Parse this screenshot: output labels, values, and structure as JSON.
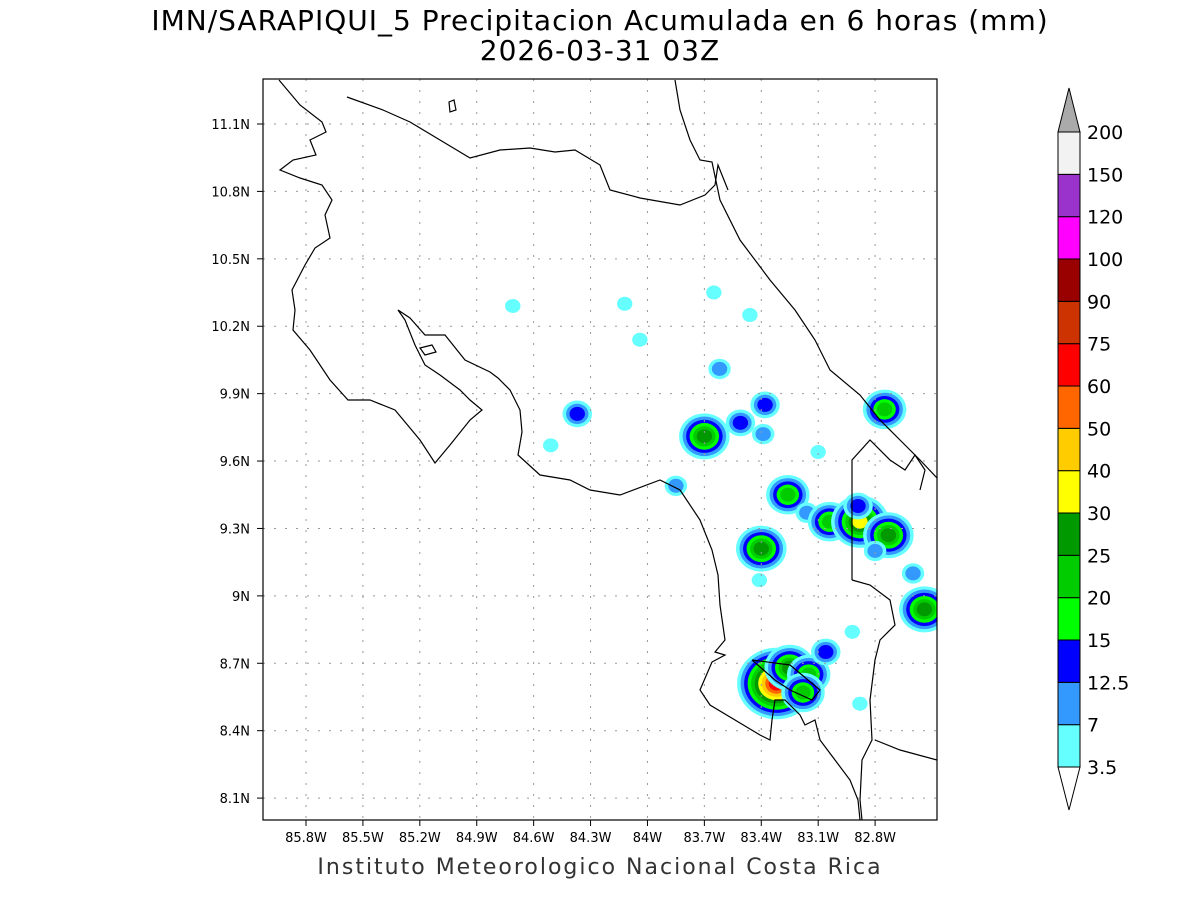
{
  "title": "IMN/SARAPIQUI_5 Precipitacion Acumulada en 6 horas (mm)",
  "subtitle": "2026-03-31 03Z",
  "footer": "Instituto Meteorologico Nacional Costa Rica",
  "chart_data": {
    "type": "heatmap",
    "units": "mm",
    "lon_range": [
      -86.0,
      -82.45
    ],
    "lat_range": [
      8.0,
      11.3
    ],
    "x_ticks": [
      "85.8W",
      "85.5W",
      "85.2W",
      "84.9W",
      "84.6W",
      "84.3W",
      "84W",
      "83.7W",
      "83.4W",
      "83.1W",
      "82.8W"
    ],
    "x_tick_values": [
      -85.8,
      -85.5,
      -85.2,
      -84.9,
      -84.6,
      -84.3,
      -84.0,
      -83.7,
      -83.4,
      -83.1,
      -82.8
    ],
    "y_ticks": [
      "11.1N",
      "10.8N",
      "10.5N",
      "10.2N",
      "9.9N",
      "9.6N",
      "9.3N",
      "9N",
      "8.7N",
      "8.4N",
      "8.1N"
    ],
    "y_tick_values": [
      11.1,
      10.8,
      10.5,
      10.2,
      9.9,
      9.6,
      9.3,
      9.0,
      8.7,
      8.4,
      8.1
    ],
    "grid": true,
    "colorbar": {
      "labels": [
        "3.5",
        "7",
        "12.5",
        "15",
        "20",
        "25",
        "30",
        "40",
        "50",
        "60",
        "75",
        "90",
        "100",
        "120",
        "150",
        "200"
      ],
      "colors": [
        "#66ffff",
        "#3399ff",
        "#0000ff",
        "#00ff00",
        "#00cc00",
        "#009900",
        "#ffff00",
        "#ffcc00",
        "#ff6600",
        "#ff0000",
        "#cc3300",
        "#990000",
        "#ff00ff",
        "#9933cc",
        "#f2f2f2"
      ],
      "over_color": "#aaaaaa",
      "under_color": "#ffffff",
      "placement": "right"
    },
    "cells": [
      {
        "lon": -83.7,
        "lat": 9.71,
        "level": 5
      },
      {
        "lon": -83.51,
        "lat": 9.77,
        "level": 2
      },
      {
        "lon": -83.38,
        "lat": 9.85,
        "level": 2
      },
      {
        "lon": -84.37,
        "lat": 9.81,
        "level": 2
      },
      {
        "lon": -84.51,
        "lat": 9.67,
        "level": 0
      },
      {
        "lon": -84.04,
        "lat": 10.14,
        "level": 0
      },
      {
        "lon": -84.12,
        "lat": 10.3,
        "level": 0
      },
      {
        "lon": -84.71,
        "lat": 10.29,
        "level": 0
      },
      {
        "lon": -83.62,
        "lat": 10.01,
        "level": 1
      },
      {
        "lon": -83.46,
        "lat": 10.25,
        "level": 0
      },
      {
        "lon": -83.65,
        "lat": 10.35,
        "level": 0
      },
      {
        "lon": -82.75,
        "lat": 9.83,
        "level": 4
      },
      {
        "lon": -83.26,
        "lat": 9.45,
        "level": 4
      },
      {
        "lon": -83.16,
        "lat": 9.37,
        "level": 1
      },
      {
        "lon": -83.04,
        "lat": 9.33,
        "level": 4
      },
      {
        "lon": -82.88,
        "lat": 9.33,
        "level": 6
      },
      {
        "lon": -82.89,
        "lat": 9.4,
        "level": 2
      },
      {
        "lon": -82.73,
        "lat": 9.27,
        "level": 5
      },
      {
        "lon": -82.8,
        "lat": 9.2,
        "level": 1
      },
      {
        "lon": -83.4,
        "lat": 9.21,
        "level": 5
      },
      {
        "lon": -82.54,
        "lat": 8.94,
        "level": 5
      },
      {
        "lon": -82.6,
        "lat": 9.1,
        "level": 1
      },
      {
        "lon": -83.32,
        "lat": 8.61,
        "level": 9
      },
      {
        "lon": -83.25,
        "lat": 8.68,
        "level": 5
      },
      {
        "lon": -83.15,
        "lat": 8.65,
        "level": 4
      },
      {
        "lon": -83.18,
        "lat": 8.57,
        "level": 4
      },
      {
        "lon": -83.06,
        "lat": 8.75,
        "level": 2
      },
      {
        "lon": -83.41,
        "lat": 9.07,
        "level": 0
      },
      {
        "lon": -83.85,
        "lat": 9.49,
        "level": 1
      },
      {
        "lon": -83.1,
        "lat": 9.64,
        "level": 0
      },
      {
        "lon": -83.39,
        "lat": 9.72,
        "level": 1
      },
      {
        "lon": -82.92,
        "lat": 8.84,
        "level": 0
      },
      {
        "lon": -82.88,
        "lat": 8.52,
        "level": 0
      }
    ]
  }
}
